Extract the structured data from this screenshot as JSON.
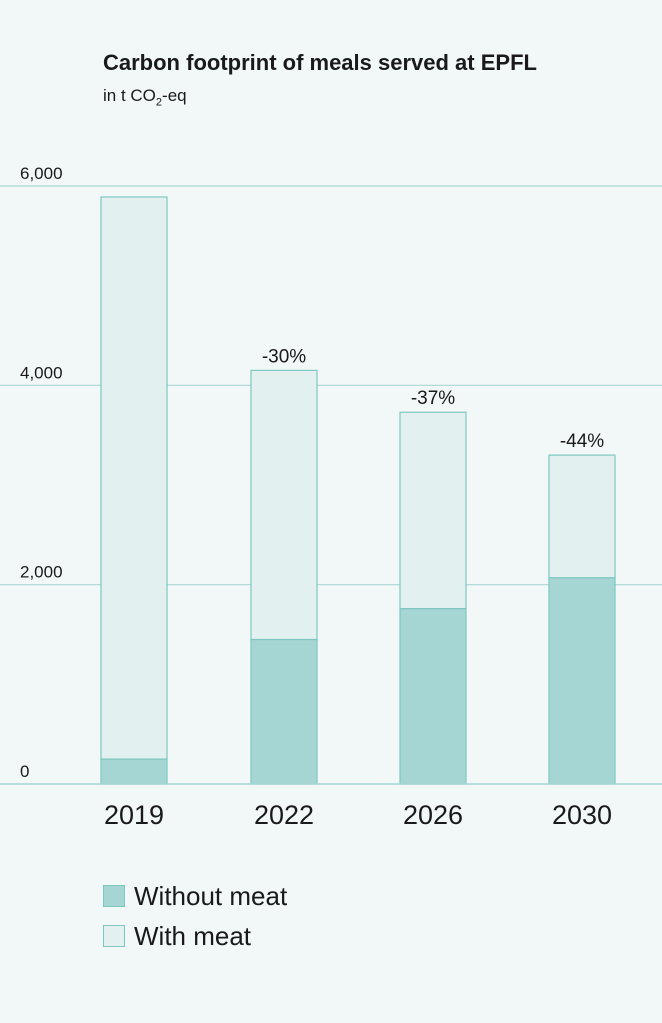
{
  "colors": {
    "background": "#f1f8f7",
    "without_meat": "#a6d6d3",
    "with_meat": "#e2f1f0",
    "bar_stroke": "#7ec7c1",
    "grid": "#a9d7d3"
  },
  "chart_data": {
    "type": "bar",
    "stacked": true,
    "title": "Carbon footprint of meals served at EPFL",
    "subtitle": "in t CO",
    "subtitle_subscript": "2",
    "subtitle_suffix": "-eq",
    "xlabel": "",
    "ylabel": "",
    "ylim": [
      0,
      6000
    ],
    "yticks": [
      0,
      2000,
      4000,
      6000
    ],
    "ytick_labels": [
      "0",
      "2,000",
      "4,000",
      "6,000"
    ],
    "grid": true,
    "legend_position": "bottom-left",
    "categories": [
      "2019",
      "2022",
      "2026",
      "2030"
    ],
    "series": [
      {
        "name": "Without meat",
        "color": "#a6d6d3",
        "values": [
          250,
          1450,
          1760,
          2070
        ]
      },
      {
        "name": "With meat",
        "color": "#e2f1f0",
        "values": [
          5640,
          2700,
          1970,
          1230
        ]
      }
    ],
    "annotations": [
      "",
      "-30%",
      "-37%",
      "-44%"
    ]
  }
}
